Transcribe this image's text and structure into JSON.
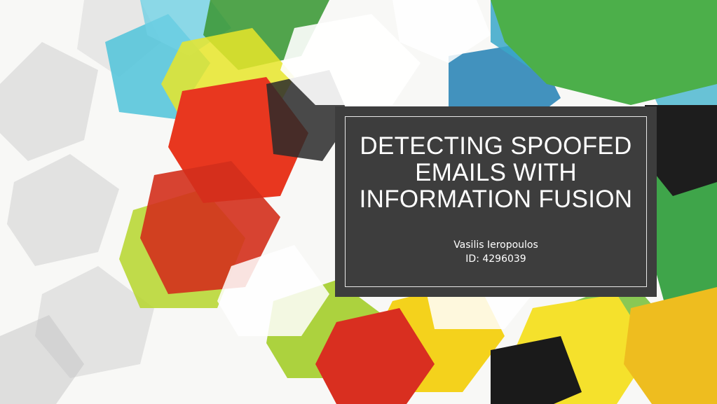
{
  "slide": {
    "title": "DETECTING SPOOFED EMAILS WITH INFORMATION FUSION",
    "author": "Vasilis Ieropoulos",
    "student_id": "ID: 4296039"
  },
  "background": {
    "description_colors": [
      "#e53a25",
      "#f2e12b",
      "#9ccf2a",
      "#4fb64a",
      "#3aa7c9",
      "#1f78a8",
      "#ffffff",
      "#bdbdbd",
      "#1a1a1a",
      "#f0b81e"
    ]
  },
  "title_box_color": "#3d3d3d"
}
